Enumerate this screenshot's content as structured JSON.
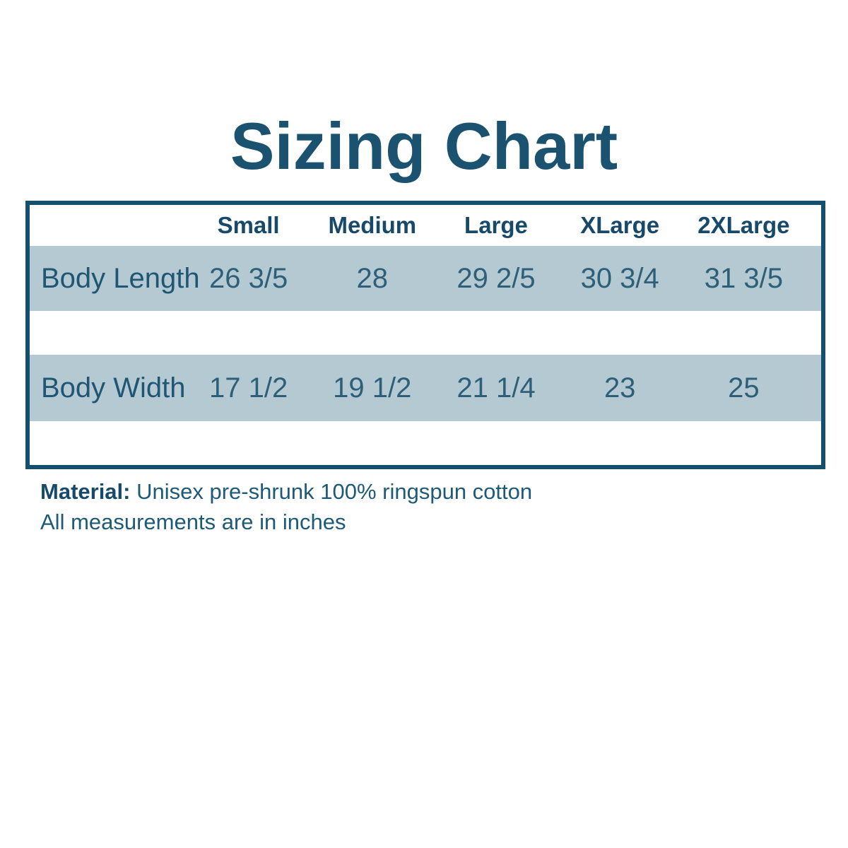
{
  "title": "Sizing Chart",
  "chart_data": {
    "type": "table",
    "title": "Sizing Chart",
    "columns": [
      "Small",
      "Medium",
      "Large",
      "XLarge",
      "2XLarge"
    ],
    "rows": [
      {
        "label": "Body Length",
        "values": [
          "26 3/5",
          "28",
          "29 2/5",
          "30 3/4",
          "31 3/5"
        ]
      },
      {
        "label": "Body Width",
        "values": [
          "17 1/2",
          "19 1/2",
          "21 1/4",
          "23",
          "25"
        ]
      }
    ],
    "units": "inches",
    "layout": {
      "striped_rows": true,
      "stripe_color": "#b5c9d3",
      "border_color": "#14506e"
    }
  },
  "footer": {
    "material_label": "Material:",
    "material_text": " Unisex pre-shrunk 100% ringspun cotton",
    "note": "All measurements are in inches"
  },
  "colors": {
    "accent_dark": "#14506e",
    "heading_text": "#1a5270",
    "header_text": "#17496b",
    "value_text": "#2d6078",
    "row_highlight": "#b5c9d3",
    "background": "#ffffff"
  }
}
